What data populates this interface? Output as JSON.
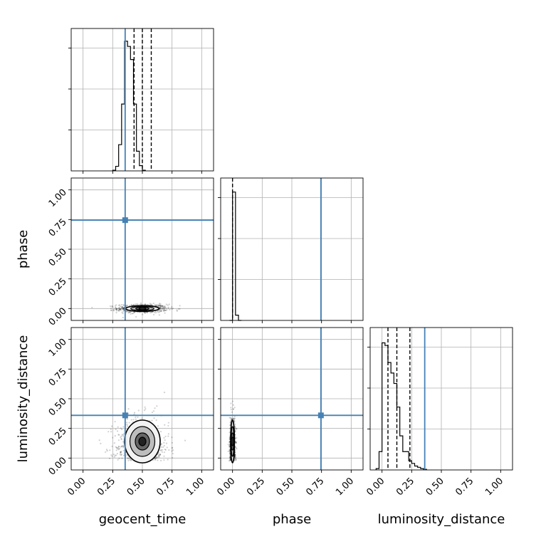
{
  "chart_data": {
    "type": "corner",
    "parameters": [
      "geocent_time",
      "phase",
      "luminosity_distance"
    ],
    "axis_labels": {
      "x": [
        "geocent_time",
        "phase",
        "luminosity_distance"
      ],
      "y": [
        "",
        "phase",
        "luminosity_distance"
      ]
    },
    "tick_values": [
      0.0,
      0.25,
      0.5,
      0.75,
      1.0
    ],
    "tick_labels": [
      "0.00",
      "0.25",
      "0.50",
      "0.75",
      "1.00"
    ],
    "lim": [
      -0.1,
      1.1
    ],
    "grid": true,
    "truth": {
      "geocent_time": 0.355,
      "phase": 0.745,
      "luminosity_distance": 0.36,
      "color": "#4682b4"
    },
    "quantiles": {
      "geocent_time": [
        0.43,
        0.5,
        0.575
      ],
      "phase": [
        0.0
      ],
      "luminosity_distance": [
        0.05,
        0.125,
        0.235
      ]
    },
    "histograms": {
      "geocent_time": {
        "x_start": 0.25,
        "bin_width": 0.025,
        "counts": [
          0.005,
          0.035,
          0.2,
          0.51,
          0.99,
          0.95,
          0.85,
          0.51,
          0.15,
          0.04,
          0.005
        ]
      },
      "phase": {
        "x_start": -0.025,
        "bin_width": 0.025,
        "counts": [
          0.0,
          0.98,
          0.04,
          0.0
        ]
      },
      "luminosity_distance": {
        "x_start": -0.05,
        "bin_width": 0.025,
        "counts": [
          0.01,
          0.14,
          0.97,
          0.95,
          0.82,
          0.74,
          0.66,
          0.48,
          0.26,
          0.14,
          0.14,
          0.07,
          0.05,
          0.03,
          0.02,
          0.01,
          0.005
        ]
      }
    },
    "scatter_2d": {
      "geocent_time_vs_phase": {
        "x_center": 0.5,
        "y_center": 0.0,
        "x_spread": 0.07,
        "y_spread": 0.012
      },
      "geocent_time_vs_luminosity_distance": {
        "x_center": 0.5,
        "y_center": 0.14,
        "x_spread": 0.075,
        "y_spread": 0.09
      },
      "phase_vs_luminosity_distance": {
        "x_center": 0.0,
        "y_center": 0.14,
        "x_spread": 0.008,
        "y_spread": 0.09
      }
    },
    "colors": {
      "hist": "#000000",
      "truth": "#4682b4",
      "grid": "#b0b0b0"
    }
  }
}
